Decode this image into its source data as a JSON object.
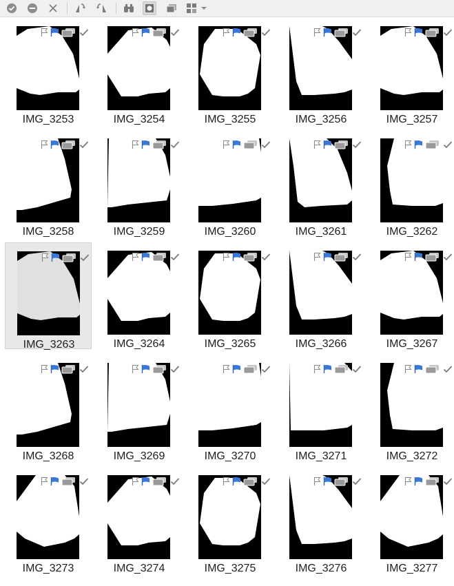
{
  "toolbar": {
    "buttons": [
      {
        "name": "accept-circle-icon",
        "interactable": true
      },
      {
        "name": "reject-circle-icon",
        "interactable": true
      },
      {
        "name": "clear-x-icon",
        "interactable": true
      },
      {
        "name": "rotate-left-icon",
        "interactable": true
      },
      {
        "name": "rotate-right-icon",
        "interactable": true
      },
      {
        "name": "compare-binoculars-icon",
        "interactable": true
      },
      {
        "name": "preview-frame-icon",
        "interactable": true
      },
      {
        "name": "stack-icon",
        "interactable": true
      },
      {
        "name": "view-grid-icon",
        "interactable": true
      }
    ]
  },
  "thumbnails": [
    {
      "label": "IMG_3253",
      "shape": "A"
    },
    {
      "label": "IMG_3254",
      "shape": "B"
    },
    {
      "label": "IMG_3255",
      "shape": "C"
    },
    {
      "label": "IMG_3256",
      "shape": "D"
    },
    {
      "label": "IMG_3257",
      "shape": "A"
    },
    {
      "label": "IMG_3258",
      "shape": "E"
    },
    {
      "label": "IMG_3259",
      "shape": "F"
    },
    {
      "label": "IMG_3260",
      "shape": "G"
    },
    {
      "label": "IMG_3261",
      "shape": "H"
    },
    {
      "label": "IMG_3262",
      "shape": "I"
    },
    {
      "label": "IMG_3263",
      "shape": "A",
      "selected": true
    },
    {
      "label": "IMG_3264",
      "shape": "B"
    },
    {
      "label": "IMG_3265",
      "shape": "C"
    },
    {
      "label": "IMG_3266",
      "shape": "D"
    },
    {
      "label": "IMG_3267",
      "shape": "A"
    },
    {
      "label": "IMG_3268",
      "shape": "E"
    },
    {
      "label": "IMG_3269",
      "shape": "F"
    },
    {
      "label": "IMG_3270",
      "shape": "G"
    },
    {
      "label": "IMG_3271",
      "shape": "J"
    },
    {
      "label": "IMG_3272",
      "shape": "I"
    },
    {
      "label": "IMG_3273",
      "shape": "K"
    },
    {
      "label": "IMG_3274",
      "shape": "B"
    },
    {
      "label": "IMG_3275",
      "shape": "C"
    },
    {
      "label": "IMG_3276",
      "shape": "D"
    },
    {
      "label": "IMG_3277",
      "shape": "K"
    }
  ],
  "colors": {
    "flag_blue": "#3a78d8",
    "selected_shape": "#e0e0e0",
    "badge_gray": "#9a9a9a"
  }
}
